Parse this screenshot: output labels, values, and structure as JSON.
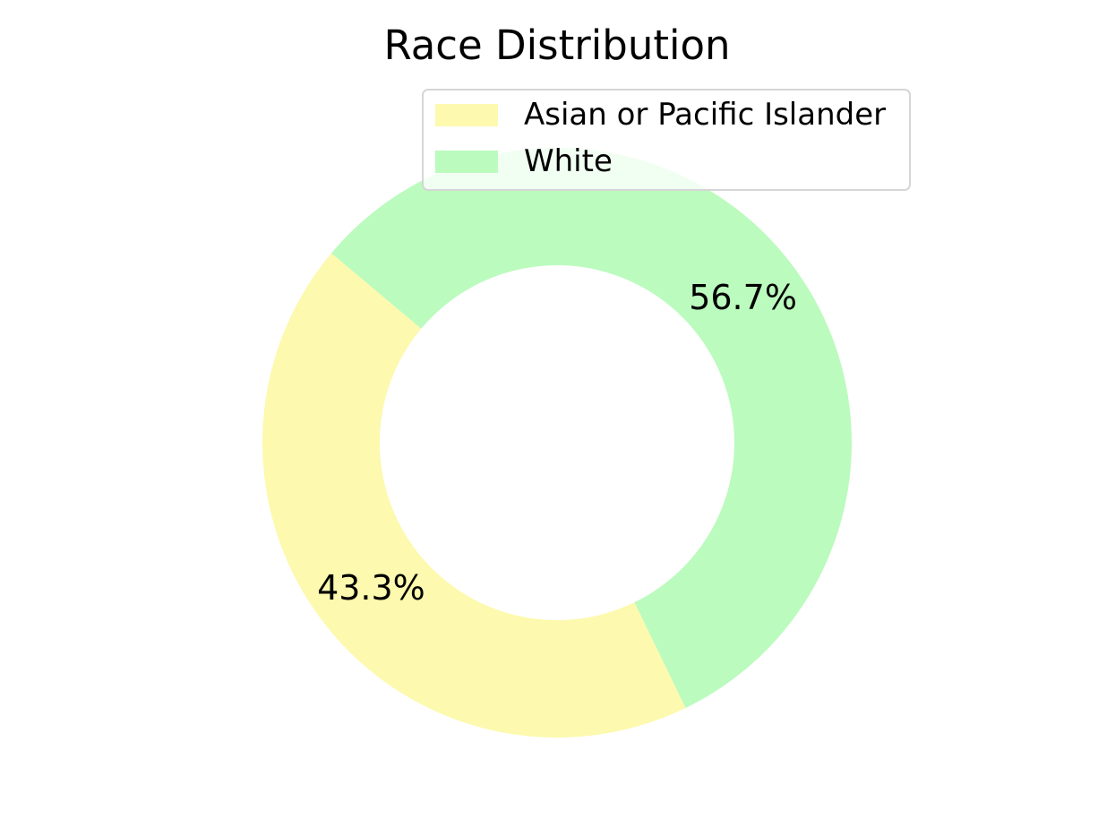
{
  "chart_data": {
    "type": "pie",
    "style": "donut",
    "title": "Race Distribution",
    "categories": [
      "Asian or Pacific Islander",
      "White"
    ],
    "values": [
      43.3,
      56.7
    ],
    "labels": [
      "43.3%",
      "56.7%"
    ],
    "colors": [
      "#fdf9ae",
      "#bbfbbe"
    ],
    "legend": {
      "position": "upper-right",
      "entries": [
        "Asian or Pacific Islander",
        "White"
      ]
    }
  }
}
